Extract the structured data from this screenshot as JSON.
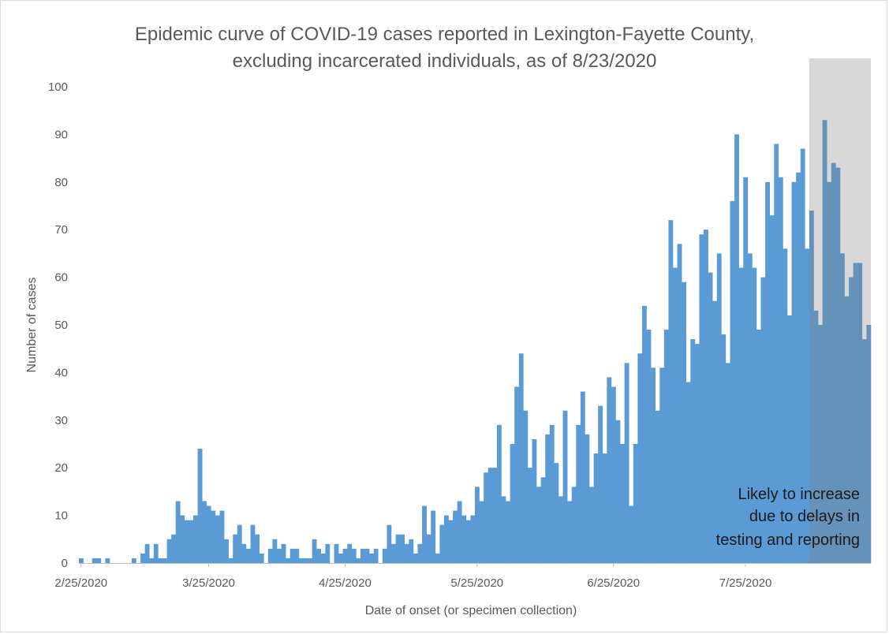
{
  "chart_data": {
    "type": "bar",
    "title": "Epidemic curve of COVID-19 cases reported in Lexington-Fayette County,",
    "subtitle": "excluding incarcerated individuals, as of 8/23/2020",
    "xlabel": "Date of onset (or specimen collection)",
    "ylabel": "Number of cases",
    "ylim": [
      0,
      100
    ],
    "y_ticks": [
      "0",
      "10",
      "20",
      "30",
      "40",
      "50",
      "60",
      "70",
      "80",
      "90",
      "100"
    ],
    "x_tick_labels": [
      "2/25/2020",
      "3/25/2020",
      "4/25/2020",
      "5/25/2020",
      "6/25/2020",
      "7/25/2020"
    ],
    "start_date": "2/25/2020",
    "end_date": "8/23/2020",
    "values": [
      1,
      0,
      0,
      1,
      1,
      0,
      1,
      0,
      0,
      0,
      0,
      0,
      1,
      0,
      2,
      4,
      1,
      4,
      1,
      1,
      5,
      6,
      13,
      10,
      9,
      9,
      10,
      24,
      13,
      12,
      11,
      10,
      11,
      5,
      1,
      6,
      8,
      4,
      3,
      8,
      6,
      2,
      0,
      3,
      5,
      3,
      4,
      1,
      3,
      3,
      1,
      1,
      1,
      5,
      3,
      2,
      4,
      0,
      4,
      2,
      3,
      4,
      3,
      1,
      3,
      3,
      2,
      3,
      0,
      3,
      8,
      4,
      6,
      6,
      4,
      5,
      2,
      4,
      12,
      6,
      11,
      2,
      8,
      10,
      9,
      11,
      13,
      10,
      9,
      10,
      16,
      13,
      19,
      20,
      20,
      29,
      14,
      13,
      25,
      37,
      44,
      32,
      20,
      26,
      16,
      18,
      27,
      29,
      21,
      14,
      32,
      13,
      16,
      29,
      36,
      27,
      16,
      23,
      33,
      23,
      39,
      37,
      30,
      25,
      42,
      12,
      25,
      44,
      54,
      49,
      41,
      32,
      41,
      49,
      72,
      62,
      67,
      59,
      38,
      47,
      46,
      69,
      70,
      61,
      55,
      65,
      48,
      42,
      76,
      90,
      62,
      81,
      65,
      62,
      49,
      60,
      80,
      73,
      88,
      81,
      66,
      52,
      80,
      82,
      87,
      66,
      74,
      53,
      50,
      93,
      80,
      84,
      83,
      65,
      56,
      60,
      63,
      63,
      47,
      50
    ],
    "annotation": {
      "lines": [
        "Likely to increase",
        "due to delays in",
        "testing and reporting"
      ]
    },
    "colors": {
      "bar": "#5b9bd5",
      "shade": "#7f7f7f",
      "shade_opacity": 0.3,
      "text": "#595959"
    },
    "grid": false,
    "legend": "none"
  }
}
